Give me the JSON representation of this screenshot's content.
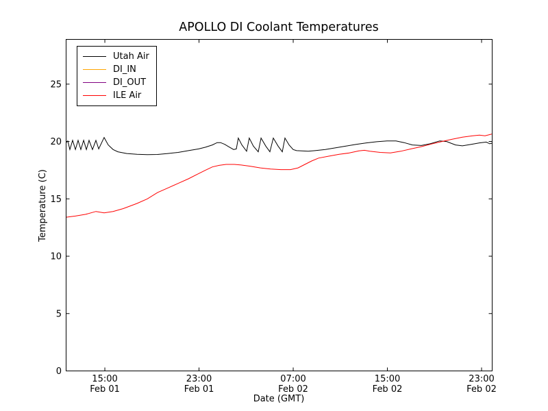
{
  "figure": {
    "background": "#ffffff"
  },
  "chart_data": {
    "type": "line",
    "title": "APOLLO DI Coolant Temperatures",
    "xlabel": "Date (GMT)",
    "ylabel": "Temperature (C)",
    "grid": false,
    "legend_position": "upper left",
    "x_unit": "hours since Feb 01 00:00 GMT",
    "xlim": [
      11.71,
      47.9
    ],
    "ylim": [
      0,
      28.9
    ],
    "yticks": [
      0,
      5,
      10,
      15,
      20,
      25
    ],
    "xticks": [
      {
        "value": 15,
        "time": "15:00",
        "date": "Feb 01"
      },
      {
        "value": 23,
        "time": "23:00",
        "date": "Feb 01"
      },
      {
        "value": 31,
        "time": "07:00",
        "date": "Feb 02"
      },
      {
        "value": 39,
        "time": "15:00",
        "date": "Feb 02"
      },
      {
        "value": 47,
        "time": "23:00",
        "date": "Feb 02"
      }
    ],
    "series": [
      {
        "name": "Utah Air",
        "color": "#000000",
        "opacity": 1,
        "points": [
          [
            11.71,
            19.9
          ],
          [
            11.85,
            20.05
          ],
          [
            12.03,
            19.3
          ],
          [
            12.26,
            20.1
          ],
          [
            12.5,
            19.3
          ],
          [
            12.73,
            20.1
          ],
          [
            12.96,
            19.3
          ],
          [
            13.2,
            20.1
          ],
          [
            13.43,
            19.3
          ],
          [
            13.66,
            20.1
          ],
          [
            13.95,
            19.3
          ],
          [
            14.24,
            20.1
          ],
          [
            14.48,
            19.35
          ],
          [
            14.94,
            20.35
          ],
          [
            15.29,
            19.7
          ],
          [
            15.7,
            19.3
          ],
          [
            16.11,
            19.1
          ],
          [
            16.86,
            18.95
          ],
          [
            17.73,
            18.88
          ],
          [
            18.61,
            18.85
          ],
          [
            19.48,
            18.87
          ],
          [
            20.35,
            18.95
          ],
          [
            21.23,
            19.05
          ],
          [
            22.1,
            19.2
          ],
          [
            22.97,
            19.35
          ],
          [
            23.55,
            19.5
          ],
          [
            24.13,
            19.7
          ],
          [
            24.54,
            19.9
          ],
          [
            24.83,
            19.9
          ],
          [
            25.18,
            19.75
          ],
          [
            25.59,
            19.5
          ],
          [
            25.94,
            19.3
          ],
          [
            26.17,
            19.35
          ],
          [
            26.34,
            20.3
          ],
          [
            26.64,
            19.7
          ],
          [
            27.04,
            19.15
          ],
          [
            27.27,
            20.3
          ],
          [
            27.62,
            19.6
          ],
          [
            28.03,
            19.1
          ],
          [
            28.27,
            20.3
          ],
          [
            28.67,
            19.6
          ],
          [
            29.02,
            19.1
          ],
          [
            29.31,
            20.3
          ],
          [
            29.72,
            19.6
          ],
          [
            30.07,
            19.1
          ],
          [
            30.3,
            20.3
          ],
          [
            30.65,
            19.7
          ],
          [
            31.0,
            19.3
          ],
          [
            31.29,
            19.2
          ],
          [
            31.7,
            19.18
          ],
          [
            32.28,
            19.15
          ],
          [
            32.86,
            19.2
          ],
          [
            33.73,
            19.3
          ],
          [
            34.61,
            19.45
          ],
          [
            35.48,
            19.6
          ],
          [
            36.35,
            19.75
          ],
          [
            37.22,
            19.88
          ],
          [
            38.1,
            19.98
          ],
          [
            38.97,
            20.05
          ],
          [
            39.73,
            20.05
          ],
          [
            40.42,
            19.9
          ],
          [
            41.12,
            19.7
          ],
          [
            41.88,
            19.65
          ],
          [
            42.63,
            19.8
          ],
          [
            43.45,
            20.05
          ],
          [
            44.03,
            20.0
          ],
          [
            44.79,
            19.7
          ],
          [
            45.37,
            19.62
          ],
          [
            46.12,
            19.75
          ],
          [
            46.82,
            19.88
          ],
          [
            47.4,
            19.95
          ],
          [
            47.69,
            19.8
          ],
          [
            47.87,
            19.85
          ]
        ]
      },
      {
        "name": "DI_IN",
        "color": "#ffa500",
        "opacity": 1,
        "points": [
          [
            11.71,
            0
          ],
          [
            47.9,
            0
          ]
        ]
      },
      {
        "name": "DI_OUT",
        "color": "#800080",
        "opacity": 0.75,
        "points": [
          [
            11.71,
            0
          ],
          [
            47.9,
            0
          ]
        ]
      },
      {
        "name": "ILE Air",
        "color": "#ff0000",
        "opacity": 1,
        "points": [
          [
            11.71,
            13.4
          ],
          [
            12.5,
            13.5
          ],
          [
            13.37,
            13.65
          ],
          [
            14.24,
            13.9
          ],
          [
            14.94,
            13.78
          ],
          [
            15.7,
            13.9
          ],
          [
            16.57,
            14.15
          ],
          [
            17.73,
            14.6
          ],
          [
            18.61,
            15.0
          ],
          [
            19.48,
            15.55
          ],
          [
            20.35,
            15.95
          ],
          [
            21.23,
            16.35
          ],
          [
            22.1,
            16.75
          ],
          [
            22.97,
            17.2
          ],
          [
            23.55,
            17.5
          ],
          [
            24.13,
            17.78
          ],
          [
            24.71,
            17.92
          ],
          [
            25.3,
            18.0
          ],
          [
            26.0,
            18.0
          ],
          [
            26.58,
            17.95
          ],
          [
            27.33,
            17.85
          ],
          [
            28.21,
            17.7
          ],
          [
            29.08,
            17.6
          ],
          [
            29.95,
            17.55
          ],
          [
            30.77,
            17.55
          ],
          [
            31.41,
            17.7
          ],
          [
            31.99,
            18.0
          ],
          [
            32.57,
            18.3
          ],
          [
            33.15,
            18.55
          ],
          [
            34.02,
            18.72
          ],
          [
            34.9,
            18.88
          ],
          [
            35.77,
            19.0
          ],
          [
            36.58,
            19.18
          ],
          [
            37.05,
            19.23
          ],
          [
            37.51,
            19.15
          ],
          [
            38.39,
            19.05
          ],
          [
            39.26,
            19.0
          ],
          [
            40.13,
            19.15
          ],
          [
            41.0,
            19.35
          ],
          [
            41.88,
            19.55
          ],
          [
            42.75,
            19.78
          ],
          [
            43.62,
            20.0
          ],
          [
            44.5,
            20.2
          ],
          [
            45.37,
            20.38
          ],
          [
            46.24,
            20.5
          ],
          [
            46.82,
            20.55
          ],
          [
            47.29,
            20.5
          ],
          [
            47.69,
            20.6
          ],
          [
            47.87,
            20.65
          ]
        ]
      }
    ]
  }
}
